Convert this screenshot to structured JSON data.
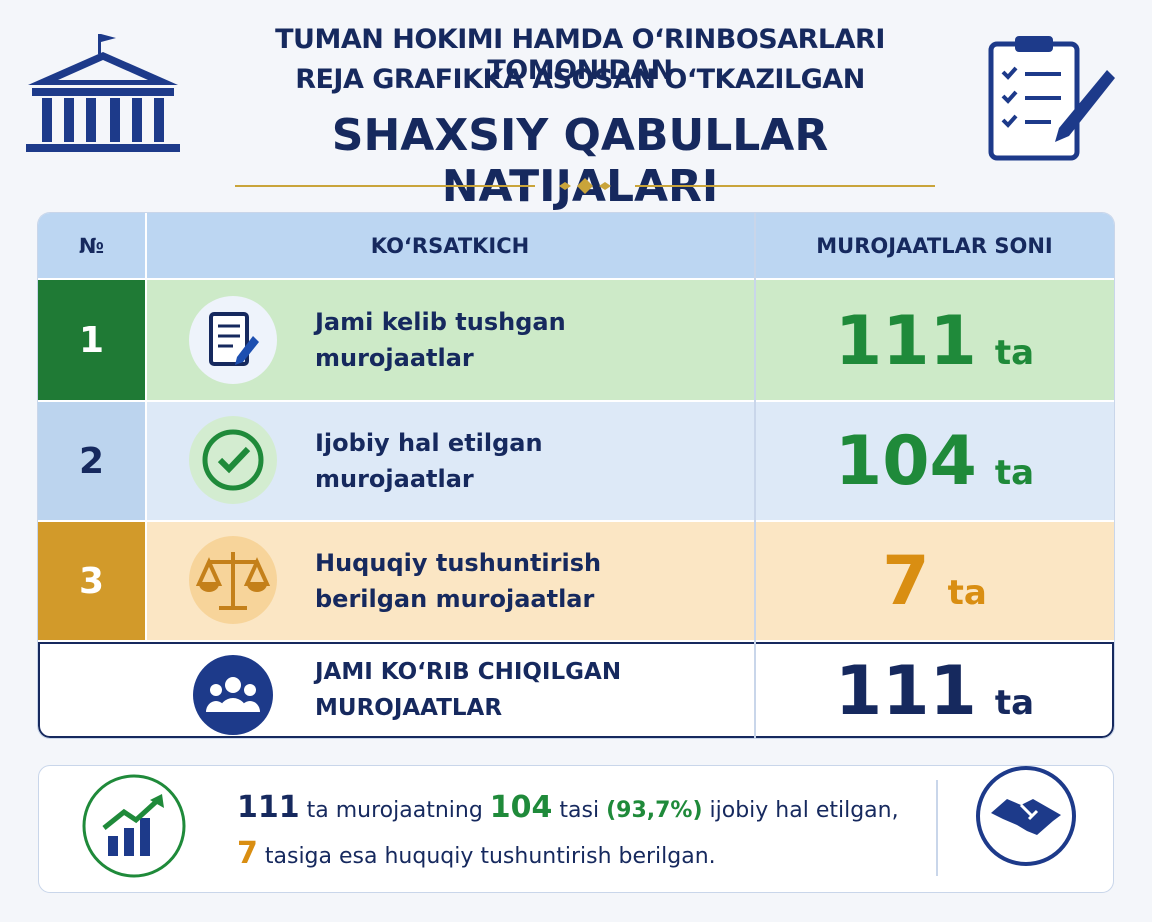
{
  "header": {
    "title_lines": [
      "TUMAN HOKIMI HAMDA O‘RINBOSARLARI TOMONIDAN",
      "REJA GRAFIKKA ASOSAN O‘TKAZILGAN"
    ],
    "title": "SHAXSIY QABULLAR NATIJALARI"
  },
  "table": {
    "columns": [
      "№",
      "KO‘RSATKICH",
      "MUROJAATLAR SONI"
    ],
    "rows": [
      {
        "number": 1,
        "label": [
          "Jami kelib tushgan",
          "murojaatlar"
        ],
        "value": 111,
        "unit": "ta"
      },
      {
        "number": 2,
        "label": [
          "Ijobiy hal etilgan",
          "murojaatlar"
        ],
        "value": 104,
        "unit": "ta"
      },
      {
        "number": 3,
        "label": [
          "Huquqiy tushuntirish",
          "berilgan murojaatlar"
        ],
        "value": 7,
        "unit": "ta"
      }
    ],
    "total": {
      "label": [
        "JAMI KO‘RIB CHIQILGAN",
        "MUROJAATLAR"
      ],
      "value": 111,
      "unit": "ta"
    }
  },
  "summary": {
    "lines": [
      [
        "111",
        " ta murojaatning ",
        "104",
        " tasi ",
        "(93,7%)",
        " ijobiy hal etilgan,"
      ],
      [
        "7",
        " tasiga esa huquqiy tushuntirish berilgan."
      ]
    ]
  }
}
